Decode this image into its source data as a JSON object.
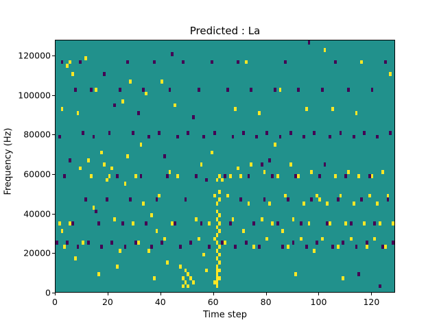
{
  "figure": {
    "title": "Predicted : La",
    "xlabel": "Time step",
    "ylabel": "Frequency (Hz)"
  },
  "chart_data": {
    "type": "heatmap",
    "title": "Predicted : La",
    "xlabel": "Time step",
    "ylabel": "Frequency (Hz)",
    "x_max": 129,
    "y_max": 128000,
    "bin_hz": 2000,
    "x_ticks": [
      0,
      20,
      40,
      60,
      80,
      100,
      120
    ],
    "y_ticks": [
      0,
      20000,
      40000,
      60000,
      80000,
      100000,
      120000
    ],
    "colors": {
      "background": "#21918c",
      "active": "#fde725",
      "inactive": "#440154"
    },
    "legend": "none",
    "cells": {
      "active_yellow": [
        [
          1,
          34000
        ],
        [
          2,
          30000
        ],
        [
          2,
          92000
        ],
        [
          3,
          22000
        ],
        [
          4,
          114000
        ],
        [
          5,
          116000
        ],
        [
          5,
          34000
        ],
        [
          6,
          110000
        ],
        [
          7,
          16000
        ],
        [
          8,
          90000
        ],
        [
          9,
          62000
        ],
        [
          10,
          24000
        ],
        [
          11,
          118000
        ],
        [
          12,
          66000
        ],
        [
          13,
          58000
        ],
        [
          14,
          42000
        ],
        [
          15,
          102000
        ],
        [
          16,
          8000
        ],
        [
          17,
          70000
        ],
        [
          18,
          64000
        ],
        [
          19,
          56000
        ],
        [
          20,
          58000
        ],
        [
          21,
          62000
        ],
        [
          22,
          36000
        ],
        [
          23,
          12000
        ],
        [
          24,
          20000
        ],
        [
          25,
          96000
        ],
        [
          26,
          54000
        ],
        [
          27,
          68000
        ],
        [
          28,
          106000
        ],
        [
          29,
          34000
        ],
        [
          30,
          58000
        ],
        [
          31,
          24000
        ],
        [
          32,
          74000
        ],
        [
          33,
          44000
        ],
        [
          34,
          100000
        ],
        [
          35,
          20000
        ],
        [
          36,
          38000
        ],
        [
          37,
          6000
        ],
        [
          38,
          30000
        ],
        [
          39,
          48000
        ],
        [
          40,
          106000
        ],
        [
          41,
          26000
        ],
        [
          42,
          14000
        ],
        [
          43,
          60000
        ],
        [
          44,
          34000
        ],
        [
          45,
          94000
        ],
        [
          46,
          58000
        ],
        [
          47,
          12000
        ],
        [
          48,
          2000
        ],
        [
          48,
          6000
        ],
        [
          49,
          4000
        ],
        [
          49,
          10000
        ],
        [
          50,
          2000
        ],
        [
          50,
          8000
        ],
        [
          51,
          6000
        ],
        [
          52,
          4000
        ],
        [
          53,
          36000
        ],
        [
          54,
          26000
        ],
        [
          55,
          64000
        ],
        [
          56,
          18000
        ],
        [
          57,
          10000
        ],
        [
          58,
          34000
        ],
        [
          59,
          70000
        ],
        [
          60,
          4000
        ],
        [
          60,
          26000
        ],
        [
          60,
          48000
        ],
        [
          61,
          2000
        ],
        [
          61,
          4000
        ],
        [
          61,
          6000
        ],
        [
          61,
          8000
        ],
        [
          61,
          10000
        ],
        [
          61,
          12000
        ],
        [
          61,
          16000
        ],
        [
          61,
          20000
        ],
        [
          61,
          24000
        ],
        [
          61,
          28000
        ],
        [
          61,
          32000
        ],
        [
          61,
          36000
        ],
        [
          61,
          40000
        ],
        [
          61,
          44000
        ],
        [
          61,
          56000
        ],
        [
          62,
          6000
        ],
        [
          62,
          10000
        ],
        [
          62,
          14000
        ],
        [
          62,
          18000
        ],
        [
          62,
          22000
        ],
        [
          62,
          30000
        ],
        [
          62,
          34000
        ],
        [
          62,
          38000
        ],
        [
          62,
          46000
        ],
        [
          62,
          50000
        ],
        [
          62,
          58000
        ],
        [
          63,
          56000
        ],
        [
          64,
          24000
        ],
        [
          65,
          48000
        ],
        [
          66,
          58000
        ],
        [
          67,
          36000
        ],
        [
          68,
          92000
        ],
        [
          69,
          62000
        ],
        [
          70,
          58000
        ],
        [
          71,
          30000
        ],
        [
          72,
          116000
        ],
        [
          73,
          44000
        ],
        [
          74,
          64000
        ],
        [
          75,
          22000
        ],
        [
          76,
          78000
        ],
        [
          77,
          90000
        ],
        [
          78,
          36000
        ],
        [
          79,
          60000
        ],
        [
          80,
          26000
        ],
        [
          81,
          44000
        ],
        [
          82,
          34000
        ],
        [
          83,
          74000
        ],
        [
          84,
          58000
        ],
        [
          85,
          102000
        ],
        [
          86,
          30000
        ],
        [
          87,
          48000
        ],
        [
          88,
          22000
        ],
        [
          89,
          64000
        ],
        [
          90,
          36000
        ],
        [
          91,
          8000
        ],
        [
          92,
          58000
        ],
        [
          93,
          26000
        ],
        [
          94,
          44000
        ],
        [
          95,
          92000
        ],
        [
          96,
          34000
        ],
        [
          97,
          60000
        ],
        [
          98,
          20000
        ],
        [
          99,
          48000
        ],
        [
          100,
          58000
        ],
        [
          100,
          46000
        ],
        [
          101,
          26000
        ],
        [
          102,
          122000
        ],
        [
          103,
          44000
        ],
        [
          104,
          34000
        ],
        [
          105,
          92000
        ],
        [
          106,
          58000
        ],
        [
          107,
          22000
        ],
        [
          108,
          48000
        ],
        [
          109,
          6000
        ],
        [
          110,
          34000
        ],
        [
          111,
          60000
        ],
        [
          112,
          26000
        ],
        [
          113,
          44000
        ],
        [
          114,
          90000
        ],
        [
          115,
          58000
        ],
        [
          116,
          116000
        ],
        [
          117,
          34000
        ],
        [
          118,
          22000
        ],
        [
          119,
          48000
        ],
        [
          120,
          58000
        ],
        [
          121,
          26000
        ],
        [
          122,
          44000
        ],
        [
          123,
          34000
        ],
        [
          124,
          60000
        ],
        [
          125,
          22000
        ],
        [
          126,
          48000
        ],
        [
          127,
          110000
        ],
        [
          128,
          34000
        ]
      ],
      "inactive_dark": [
        [
          0,
          24000
        ],
        [
          1,
          78000
        ],
        [
          2,
          116000
        ],
        [
          3,
          58000
        ],
        [
          4,
          24000
        ],
        [
          5,
          66000
        ],
        [
          6,
          34000
        ],
        [
          7,
          102000
        ],
        [
          8,
          22000
        ],
        [
          9,
          116000
        ],
        [
          10,
          80000
        ],
        [
          11,
          46000
        ],
        [
          12,
          24000
        ],
        [
          13,
          102000
        ],
        [
          14,
          78000
        ],
        [
          15,
          40000
        ],
        [
          16,
          34000
        ],
        [
          17,
          22000
        ],
        [
          18,
          110000
        ],
        [
          19,
          46000
        ],
        [
          20,
          80000
        ],
        [
          21,
          24000
        ],
        [
          22,
          94000
        ],
        [
          23,
          58000
        ],
        [
          24,
          102000
        ],
        [
          25,
          34000
        ],
        [
          26,
          22000
        ],
        [
          27,
          116000
        ],
        [
          28,
          46000
        ],
        [
          29,
          80000
        ],
        [
          30,
          24000
        ],
        [
          31,
          90000
        ],
        [
          32,
          58000
        ],
        [
          33,
          102000
        ],
        [
          34,
          34000
        ],
        [
          35,
          78000
        ],
        [
          36,
          22000
        ],
        [
          37,
          116000
        ],
        [
          38,
          46000
        ],
        [
          39,
          80000
        ],
        [
          40,
          24000
        ],
        [
          41,
          68000
        ],
        [
          42,
          58000
        ],
        [
          43,
          102000
        ],
        [
          44,
          120000
        ],
        [
          45,
          34000
        ],
        [
          46,
          78000
        ],
        [
          47,
          22000
        ],
        [
          48,
          116000
        ],
        [
          49,
          46000
        ],
        [
          50,
          80000
        ],
        [
          51,
          24000
        ],
        [
          52,
          88000
        ],
        [
          53,
          58000
        ],
        [
          54,
          102000
        ],
        [
          55,
          34000
        ],
        [
          56,
          78000
        ],
        [
          57,
          56000
        ],
        [
          58,
          22000
        ],
        [
          59,
          116000
        ],
        [
          60,
          80000
        ],
        [
          63,
          24000
        ],
        [
          64,
          58000
        ],
        [
          65,
          102000
        ],
        [
          66,
          34000
        ],
        [
          67,
          78000
        ],
        [
          68,
          22000
        ],
        [
          69,
          116000
        ],
        [
          70,
          46000
        ],
        [
          71,
          80000
        ],
        [
          72,
          24000
        ],
        [
          73,
          58000
        ],
        [
          74,
          102000
        ],
        [
          75,
          34000
        ],
        [
          76,
          78000
        ],
        [
          77,
          22000
        ],
        [
          78,
          64000
        ],
        [
          79,
          46000
        ],
        [
          80,
          80000
        ],
        [
          81,
          66000
        ],
        [
          82,
          58000
        ],
        [
          83,
          102000
        ],
        [
          84,
          34000
        ],
        [
          85,
          78000
        ],
        [
          86,
          22000
        ],
        [
          87,
          116000
        ],
        [
          88,
          46000
        ],
        [
          89,
          80000
        ],
        [
          90,
          24000
        ],
        [
          91,
          58000
        ],
        [
          92,
          102000
        ],
        [
          93,
          34000
        ],
        [
          94,
          78000
        ],
        [
          95,
          22000
        ],
        [
          96,
          126000
        ],
        [
          97,
          46000
        ],
        [
          98,
          80000
        ],
        [
          99,
          24000
        ],
        [
          100,
          58000
        ],
        [
          101,
          102000
        ],
        [
          102,
          64000
        ],
        [
          103,
          34000
        ],
        [
          104,
          78000
        ],
        [
          105,
          22000
        ],
        [
          106,
          116000
        ],
        [
          107,
          46000
        ],
        [
          108,
          80000
        ],
        [
          109,
          24000
        ],
        [
          110,
          58000
        ],
        [
          111,
          102000
        ],
        [
          112,
          34000
        ],
        [
          113,
          78000
        ],
        [
          114,
          22000
        ],
        [
          115,
          8000
        ],
        [
          116,
          46000
        ],
        [
          117,
          80000
        ],
        [
          118,
          24000
        ],
        [
          119,
          58000
        ],
        [
          120,
          102000
        ],
        [
          121,
          34000
        ],
        [
          122,
          78000
        ],
        [
          123,
          2000
        ],
        [
          124,
          22000
        ],
        [
          125,
          116000
        ],
        [
          126,
          46000
        ],
        [
          127,
          80000
        ],
        [
          128,
          24000
        ]
      ]
    }
  }
}
